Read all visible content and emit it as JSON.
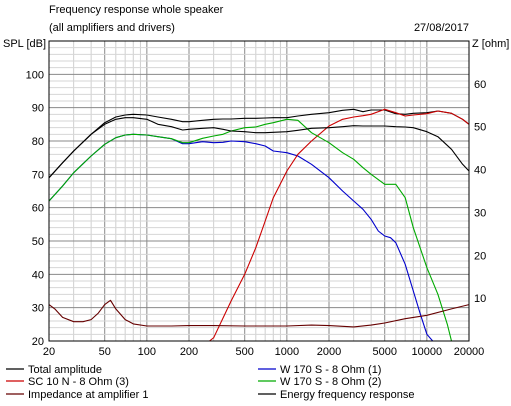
{
  "chart_data": {
    "type": "line",
    "title": "Frequency response whole speaker",
    "subtitle": "(all amplifiers and drivers)",
    "date": "27/08/2017",
    "left_axis_label": "SPL [dB]",
    "right_axis_label": "Z [ohm]",
    "x_scale": "log",
    "xlim": [
      20,
      20000
    ],
    "ylim_left": [
      20,
      110
    ],
    "ylim_right": [
      0,
      70
    ],
    "x_ticks": [
      {
        "v": 20,
        "label": "20"
      },
      {
        "v": 50,
        "label": "50"
      },
      {
        "v": 100,
        "label": "100"
      },
      {
        "v": 200,
        "label": "200"
      },
      {
        "v": 500,
        "label": "500"
      },
      {
        "v": 1000,
        "label": "1000"
      },
      {
        "v": 2000,
        "label": "2000"
      },
      {
        "v": 5000,
        "label": "5000"
      },
      {
        "v": 10000,
        "label": "10000"
      },
      {
        "v": 20000,
        "label": "20000"
      }
    ],
    "y_ticks_left": [
      20,
      30,
      40,
      50,
      60,
      70,
      80,
      90,
      100
    ],
    "y_ticks_right": [
      10,
      20,
      30,
      40,
      50,
      60
    ],
    "grid": true,
    "legend_position": "bottom",
    "series": [
      {
        "name": "Total amplitude",
        "color": "#000000",
        "axis": "left",
        "x": [
          20,
          25,
          30,
          40,
          50,
          60,
          70,
          80,
          100,
          120,
          150,
          180,
          200,
          250,
          300,
          350,
          400,
          500,
          600,
          700,
          800,
          1000,
          1200,
          1500,
          2000,
          2500,
          3000,
          3500,
          4000,
          5000,
          6000,
          7000,
          8000,
          10000,
          12000,
          15000,
          18000,
          20000
        ],
        "y": [
          69,
          73.5,
          77,
          82,
          85.5,
          87.2,
          87.8,
          88,
          87.8,
          87.2,
          86.5,
          85.8,
          85.8,
          86.2,
          86.5,
          86.6,
          86.6,
          86.8,
          86.8,
          86.9,
          87,
          87,
          87.5,
          88,
          88.5,
          89.2,
          89.5,
          88.8,
          89.3,
          89.3,
          88.2,
          88,
          88.3,
          88.5,
          89,
          88.3,
          86.5,
          85
        ]
      },
      {
        "name": "W 170 S - 8 Ohm (1)",
        "color": "#0000cc",
        "axis": "left",
        "x": [
          20,
          25,
          30,
          40,
          50,
          60,
          70,
          80,
          100,
          120,
          150,
          180,
          200,
          250,
          300,
          350,
          400,
          500,
          600,
          700,
          800,
          1000,
          1200,
          1500,
          2000,
          2500,
          3000,
          3500,
          4000,
          4500,
          5000,
          5500,
          6000,
          7000,
          8000,
          9000,
          10000,
          11000,
          12000
        ],
        "y": [
          62,
          66.5,
          70.5,
          75.5,
          79,
          81,
          81.8,
          82,
          81.8,
          81.3,
          80.7,
          79.2,
          79.2,
          79.8,
          79.5,
          79.6,
          80,
          79.8,
          79.2,
          78.5,
          77,
          76.5,
          75.5,
          73,
          69,
          65,
          62,
          59.5,
          56.5,
          53,
          51.5,
          51,
          49.5,
          43,
          35,
          28,
          22,
          20,
          20
        ]
      },
      {
        "name": "SC 10 N - 8 Ohm (3)",
        "color": "#cc0000",
        "axis": "left",
        "x": [
          20,
          100,
          200,
          280,
          300,
          400,
          500,
          600,
          700,
          800,
          1000,
          1200,
          1500,
          2000,
          2500,
          3000,
          3500,
          4000,
          5000,
          6000,
          7000,
          8000,
          10000,
          12000,
          15000,
          18000,
          20000
        ],
        "y": [
          20,
          20,
          20,
          20,
          21,
          32,
          40,
          48,
          56,
          63,
          71,
          76,
          80,
          84.5,
          86.5,
          87.2,
          87.6,
          88,
          89.5,
          88.5,
          87.5,
          87.8,
          88.2,
          89,
          88.3,
          86.5,
          85
        ]
      },
      {
        "name": "W 170 S - 8 Ohm (2)",
        "color": "#00aa00",
        "axis": "left",
        "x": [
          20,
          25,
          30,
          40,
          50,
          60,
          70,
          80,
          100,
          120,
          150,
          180,
          200,
          250,
          300,
          350,
          400,
          500,
          600,
          700,
          800,
          1000,
          1200,
          1500,
          2000,
          2500,
          3000,
          3500,
          4000,
          5000,
          6000,
          7000,
          8000,
          10000,
          12000,
          14000,
          15000
        ],
        "y": [
          62,
          66.5,
          70.5,
          75.5,
          79,
          81,
          81.8,
          82,
          81.8,
          81.3,
          80.7,
          79.5,
          79.5,
          80.8,
          81.5,
          82,
          83,
          84,
          84.2,
          85,
          85.5,
          86.5,
          86.2,
          82.5,
          79.5,
          76.5,
          74.5,
          72,
          70,
          67,
          67,
          63,
          54,
          42,
          34,
          25,
          20
        ]
      },
      {
        "name": "Impedance at amplifier 1",
        "color": "#660000",
        "axis": "right",
        "x": [
          20,
          22,
          25,
          30,
          35,
          40,
          45,
          50,
          55,
          60,
          70,
          80,
          100,
          150,
          200,
          300,
          500,
          700,
          1000,
          1500,
          2000,
          3000,
          4000,
          5000,
          7000,
          10000,
          15000,
          20000
        ],
        "y": [
          8.5,
          7.5,
          5.5,
          4.5,
          4.5,
          5,
          6.5,
          8.5,
          9.5,
          7.5,
          5,
          4,
          3.5,
          3.5,
          3.6,
          3.6,
          3.5,
          3.5,
          3.5,
          3.7,
          3.6,
          3.3,
          3.7,
          4.2,
          5.2,
          6,
          7.5,
          8.5
        ]
      },
      {
        "name": "Energy frequency response",
        "color": "#000000",
        "axis": "left",
        "x": [
          20,
          25,
          30,
          40,
          50,
          60,
          70,
          80,
          100,
          120,
          150,
          180,
          200,
          250,
          300,
          350,
          400,
          500,
          600,
          700,
          800,
          1000,
          1200,
          1500,
          2000,
          2500,
          3000,
          3500,
          4000,
          5000,
          6000,
          7000,
          8000,
          10000,
          12000,
          15000,
          18000,
          20000
        ],
        "y": [
          69,
          73.5,
          77,
          82,
          85,
          86.5,
          87,
          87,
          86.5,
          85,
          84.3,
          83.3,
          83.5,
          83.8,
          84,
          83.5,
          83,
          82.8,
          82.5,
          82.5,
          82.6,
          82.8,
          83.2,
          83.8,
          84,
          84.3,
          84.6,
          84.5,
          84.5,
          84.5,
          84.3,
          84.2,
          84,
          82.8,
          81.3,
          77.5,
          73,
          71
        ]
      }
    ]
  }
}
